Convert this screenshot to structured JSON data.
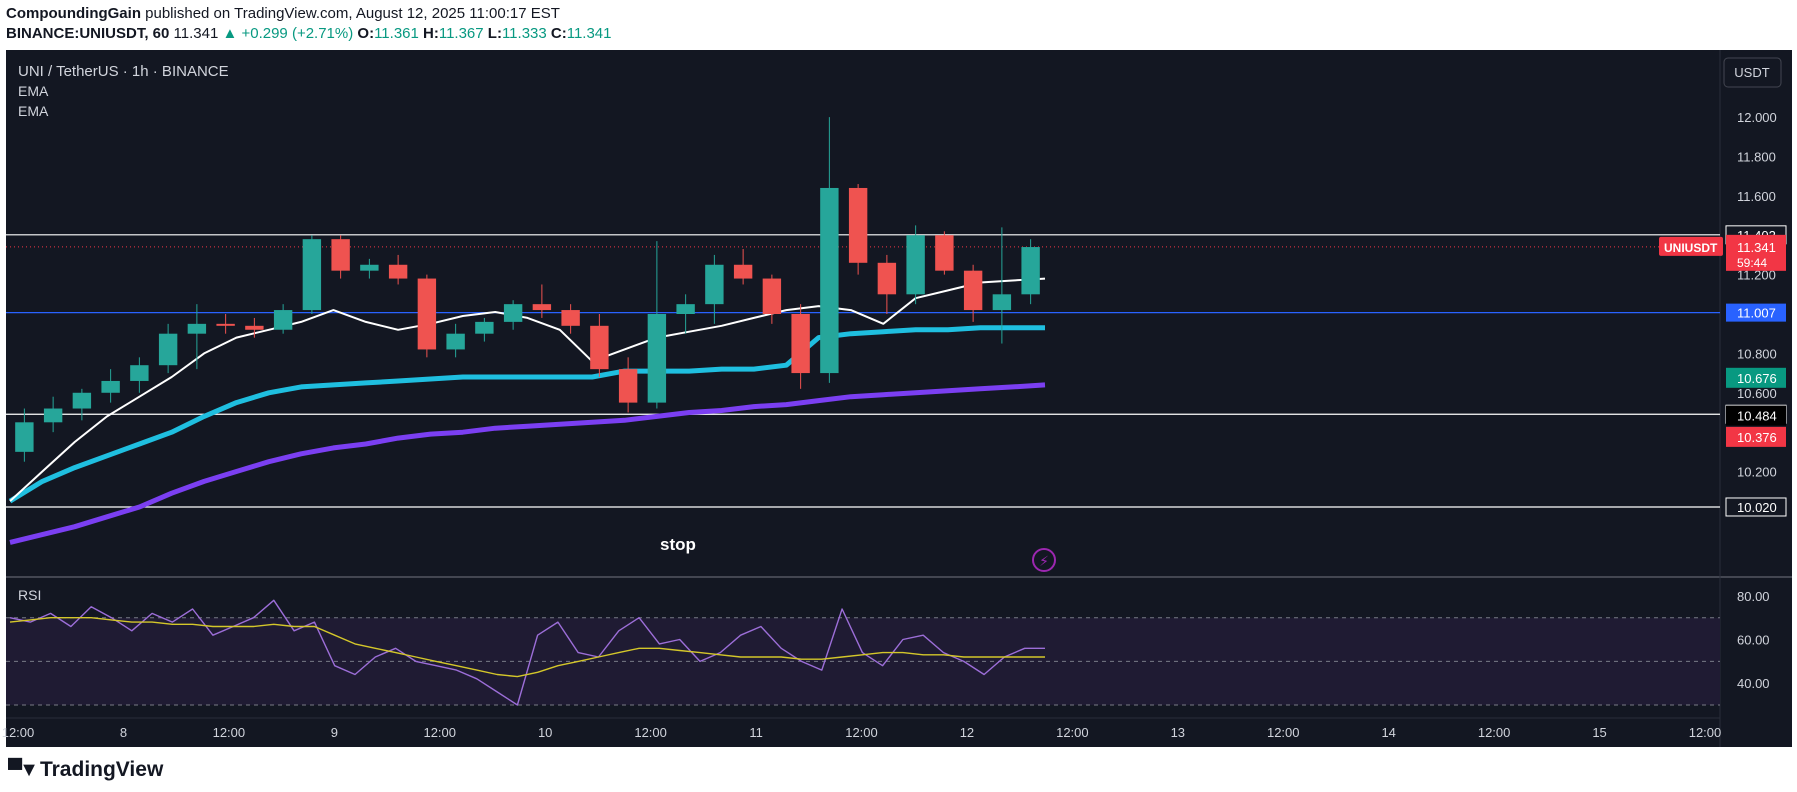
{
  "header": {
    "author": "CompoundingGain",
    "published": "published on TradingView.com, August 12, 2025 11:00:17 EST",
    "symbol_line": "BINANCE:UNIUSDT, 60",
    "last": "11.341",
    "change": "▲ +0.299 (+2.71%)",
    "o_label": "O:",
    "o": "11.361",
    "h_label": "H:",
    "h": "11.367",
    "l_label": "L:",
    "l": "11.333",
    "c_label": "C:",
    "c": "11.341"
  },
  "legend": {
    "title": "UNI / TetherUS · 1h · BINANCE",
    "ema1": "EMA",
    "ema2": "EMA",
    "rsi": "RSI"
  },
  "currency_button": "USDT",
  "stop_label": "stop",
  "footer": {
    "brand": "TradingView"
  },
  "colors": {
    "background": "#131722",
    "bullish": "#26a69a",
    "bearish": "#ef5350",
    "ema_fast": "#ffffff",
    "ema_mid": "#1fbfe0",
    "ema_slow": "#7b3ff2",
    "rsi": "#9c6ed8",
    "rsi_ma": "#d4c72a",
    "hline_blue": "#2962ff"
  },
  "chart_data": [
    {
      "type": "candlestick",
      "title": "UNI / TetherUS · 1h · BINANCE",
      "ylim": [
        9.7,
        12.3
      ],
      "y_ticks": [
        "12.000",
        "11.800",
        "11.600",
        "11.200",
        "10.800",
        "10.600",
        "10.200"
      ],
      "x_ticks": [
        "12:00",
        "8",
        "12:00",
        "9",
        "12:00",
        "10",
        "12:00",
        "11",
        "12:00",
        "12",
        "12:00",
        "13",
        "12:00",
        "14",
        "12:00",
        "15",
        "12:00"
      ],
      "horizontal_levels": [
        {
          "value": 11.402,
          "label": "11.402",
          "color": "#ffffff"
        },
        {
          "value": 11.007,
          "label": "11.007",
          "color": "#2962ff"
        },
        {
          "value": 10.491,
          "label": "10.491",
          "color": "#ffffff"
        },
        {
          "value": 10.02,
          "label": "10.020",
          "color": "#ffffff"
        }
      ],
      "price_tags": [
        {
          "label": "UNIUSDT",
          "value": "11.341",
          "countdown": "59:44",
          "color": "#f23645"
        },
        {
          "label": "",
          "value": "10.676",
          "color": "#089981"
        },
        {
          "label": "",
          "value": "10.484",
          "color": "#000000"
        },
        {
          "label": "",
          "value": "10.376",
          "color": "#f23645"
        }
      ],
      "ema_fast": [
        10.05,
        10.2,
        10.35,
        10.48,
        10.58,
        10.68,
        10.8,
        10.88,
        10.92,
        10.96,
        11.02,
        10.96,
        10.92,
        10.95,
        10.99,
        11.01,
        10.98,
        10.92,
        10.76,
        10.82,
        10.88,
        10.91,
        10.94,
        10.98,
        11.02,
        11.04,
        11.02,
        10.95,
        11.08,
        11.12,
        11.16,
        11.17,
        11.18
      ],
      "ema_mid": [
        10.05,
        10.15,
        10.22,
        10.28,
        10.34,
        10.4,
        10.48,
        10.55,
        10.6,
        10.63,
        10.64,
        10.65,
        10.66,
        10.67,
        10.68,
        10.68,
        10.68,
        10.68,
        10.68,
        10.71,
        10.71,
        10.71,
        10.72,
        10.72,
        10.74,
        10.88,
        10.9,
        10.91,
        10.92,
        10.92,
        10.93,
        10.93,
        10.93
      ],
      "ema_slow": [
        9.84,
        9.88,
        9.92,
        9.97,
        10.02,
        10.09,
        10.15,
        10.2,
        10.25,
        10.29,
        10.32,
        10.34,
        10.37,
        10.39,
        10.4,
        10.42,
        10.43,
        10.44,
        10.45,
        10.46,
        10.48,
        10.5,
        10.51,
        10.53,
        10.54,
        10.56,
        10.58,
        10.59,
        10.6,
        10.61,
        10.62,
        10.63,
        10.64
      ],
      "candles": [
        [
          10.3,
          10.52,
          10.25,
          10.45
        ],
        [
          10.45,
          10.58,
          10.4,
          10.52
        ],
        [
          10.52,
          10.62,
          10.46,
          10.6
        ],
        [
          10.6,
          10.72,
          10.55,
          10.66
        ],
        [
          10.66,
          10.78,
          10.6,
          10.74
        ],
        [
          10.74,
          10.95,
          10.7,
          10.9
        ],
        [
          10.9,
          11.05,
          10.72,
          10.95
        ],
        [
          10.95,
          11.0,
          10.9,
          10.94
        ],
        [
          10.94,
          10.98,
          10.88,
          10.92
        ],
        [
          10.92,
          11.05,
          10.9,
          11.02
        ],
        [
          11.02,
          11.4,
          11.0,
          11.38
        ],
        [
          11.38,
          11.4,
          11.18,
          11.22
        ],
        [
          11.22,
          11.28,
          11.18,
          11.25
        ],
        [
          11.25,
          11.3,
          11.15,
          11.18
        ],
        [
          11.18,
          11.2,
          10.78,
          10.82
        ],
        [
          10.82,
          10.95,
          10.78,
          10.9
        ],
        [
          10.9,
          10.98,
          10.86,
          10.96
        ],
        [
          10.96,
          11.07,
          10.92,
          11.05
        ],
        [
          11.05,
          11.15,
          10.98,
          11.02
        ],
        [
          11.02,
          11.05,
          10.9,
          10.94
        ],
        [
          10.94,
          11.0,
          10.68,
          10.72
        ],
        [
          10.72,
          10.78,
          10.5,
          10.55
        ],
        [
          10.55,
          11.37,
          10.52,
          11.0
        ],
        [
          11.0,
          11.1,
          10.9,
          11.05
        ],
        [
          11.05,
          11.3,
          10.95,
          11.25
        ],
        [
          11.25,
          11.33,
          11.15,
          11.18
        ],
        [
          11.18,
          11.2,
          10.95,
          11.0
        ],
        [
          11.0,
          11.05,
          10.62,
          10.7
        ],
        [
          10.7,
          12.0,
          10.65,
          11.64
        ],
        [
          11.64,
          11.66,
          11.2,
          11.26
        ],
        [
          11.26,
          11.3,
          11.0,
          11.1
        ],
        [
          11.1,
          11.45,
          11.05,
          11.4
        ],
        [
          11.4,
          11.42,
          11.2,
          11.22
        ],
        [
          11.22,
          11.25,
          10.96,
          11.02
        ],
        [
          11.02,
          11.44,
          10.85,
          11.1
        ],
        [
          11.1,
          11.38,
          11.05,
          11.34
        ]
      ]
    },
    {
      "type": "line",
      "title": "RSI",
      "ylim": [
        30,
        85
      ],
      "y_ticks": [
        "80.00",
        "60.00",
        "40.00"
      ],
      "bands": [
        70,
        50,
        30
      ],
      "series": [
        {
          "name": "RSI",
          "values": [
            70,
            68,
            72,
            66,
            75,
            70,
            64,
            72,
            68,
            74,
            62,
            66,
            70,
            78,
            64,
            68,
            48,
            44,
            52,
            56,
            50,
            48,
            46,
            42,
            36,
            30,
            62,
            68,
            54,
            52,
            64,
            70,
            58,
            60,
            50,
            54,
            62,
            66,
            56,
            50,
            46,
            74,
            54,
            48,
            60,
            62,
            54,
            50,
            44,
            52,
            56,
            56
          ]
        },
        {
          "name": "MA",
          "values": [
            68,
            69,
            70,
            70,
            70,
            69,
            68,
            68,
            67,
            67,
            66,
            66,
            66,
            67,
            66,
            66,
            62,
            58,
            56,
            54,
            52,
            50,
            48,
            46,
            44,
            43,
            45,
            48,
            50,
            52,
            54,
            56,
            56,
            55,
            54,
            53,
            52,
            52,
            52,
            51,
            51,
            52,
            53,
            54,
            54,
            53,
            53,
            52,
            52,
            52,
            52,
            52
          ]
        }
      ]
    }
  ]
}
